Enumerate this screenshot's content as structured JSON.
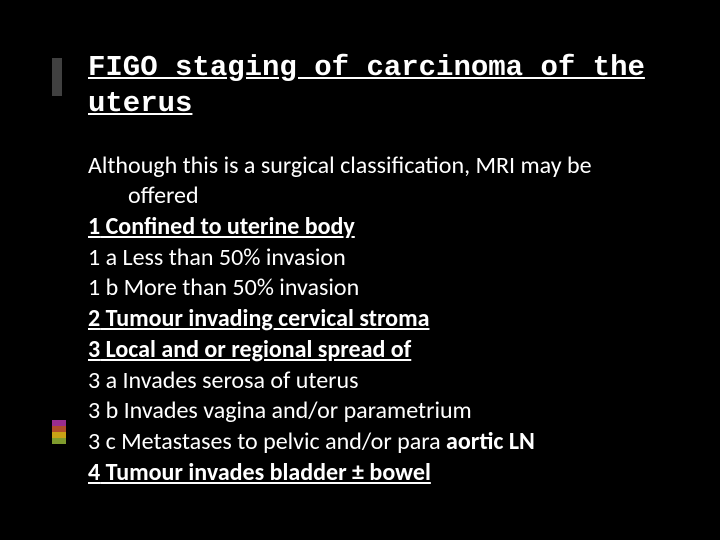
{
  "slide": {
    "background_color": "#000000",
    "text_color": "#ffffff",
    "title": {
      "text": "FIGO staging of carcinoma of the uterus",
      "font_family": "Courier New",
      "fontsize_pt": 29,
      "weight": "bold",
      "underline": true
    },
    "accent_bar": {
      "color": "#404040"
    },
    "accent_colors": [
      "#9b2d8f",
      "#b24d2a",
      "#c9a215",
      "#7f9b2d"
    ],
    "body": {
      "fontsize_pt": 24,
      "lines": [
        {
          "key": "l0",
          "text": "Although this is a surgical classification,  MRI may be",
          "indent": false,
          "bold": false,
          "underline": false
        },
        {
          "key": "l0b",
          "text": "offered",
          "indent": true,
          "bold": false,
          "underline": false
        },
        {
          "key": "l1num",
          "text": "1",
          "suffix_key": "l1rest",
          "suffix": " Confined to uterine body",
          "indent": false,
          "bold": true,
          "underline": true,
          "stage_header": true
        },
        {
          "key": "l2",
          "text": "1 a   Less than 50% invasion",
          "indent": false,
          "bold": false,
          "underline": false
        },
        {
          "key": "l3",
          "text": "1 b   More than 50% invasion",
          "indent": false,
          "bold": false,
          "underline": false
        },
        {
          "key": "l4num",
          "text": "2",
          "suffix_key": "l4rest",
          "suffix": " Tumour invading cervical stroma",
          "indent": false,
          "bold": true,
          "underline": true,
          "stage_header": true
        },
        {
          "key": "l5num",
          "text": "3",
          "suffix_key": "l5rest",
          "suffix": "  Local and or regional spread of",
          "indent": false,
          "bold": true,
          "underline": true,
          "stage_header": true
        },
        {
          "key": "l6",
          "text": "3 a   Invades serosa of uterus",
          "indent": false,
          "bold": false,
          "underline": false
        },
        {
          "key": "l7",
          "text": "3 b   Invades vagina and/or parametrium",
          "indent": false,
          "bold": false,
          "underline": false
        },
        {
          "key": "l8a",
          "text": "3 c  Metastases to pelvic and/or para ",
          "tail_key": "l8b",
          "tail": "aortic LN",
          "indent": false,
          "bold": false,
          "underline": false,
          "mixed_tail_bold": true
        },
        {
          "key": "l9num",
          "text": "4",
          "suffix_key": "l9rest",
          "suffix": "  Tumour invades bladder ± bowel",
          "indent": false,
          "bold": true,
          "underline": true,
          "stage_header": true
        }
      ]
    }
  }
}
